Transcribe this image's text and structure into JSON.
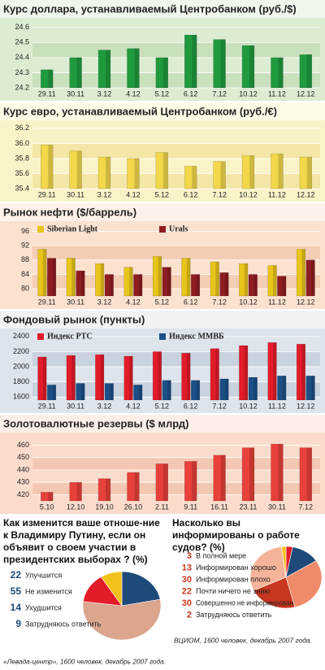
{
  "chart_data": [
    {
      "type": "bar",
      "title": "Курс доллара, устанавливаемый Центробанком (руб./$)",
      "categories": [
        "29.11",
        "30.11",
        "3.12",
        "4.12",
        "5.12",
        "6.12",
        "7.12",
        "10.12",
        "11.12",
        "12.12"
      ],
      "values": [
        24.32,
        24.4,
        24.45,
        24.46,
        24.4,
        24.55,
        24.52,
        24.48,
        24.4,
        24.42
      ],
      "color": "#1f9a3e",
      "ylim": [
        24.2,
        24.62
      ],
      "yticks": [
        24.2,
        24.3,
        24.4,
        24.5,
        24.6
      ],
      "grid": true
    },
    {
      "type": "bar",
      "title": "Курс евро, устанавливаемый Центробанком (руб./€)",
      "categories": [
        "29.11",
        "30.11",
        "3.12",
        "4.12",
        "5.12",
        "6.12",
        "7.12",
        "10.12",
        "11.12",
        "12.12"
      ],
      "values": [
        35.98,
        35.9,
        35.82,
        35.8,
        35.88,
        35.7,
        35.76,
        35.84,
        35.86,
        35.82
      ],
      "color": "#f2d84a",
      "ylim": [
        35.4,
        36.22
      ],
      "yticks": [
        35.4,
        35.6,
        35.8,
        {
          "value": 36,
          "label": "36.0"
        },
        36.2
      ],
      "grid": true
    },
    {
      "type": "bar",
      "title": "Рынок нефти ($/баррель)",
      "categories": [
        "29.11",
        "30.11",
        "3.12",
        "4.12",
        "5.12",
        "6.12",
        "7.12",
        "10.12",
        "11.12",
        "12.12"
      ],
      "series": [
        {
          "name": "Siberian Light",
          "color": "#e8c51a",
          "values": [
            91,
            88.5,
            87,
            86,
            89,
            88.5,
            87.5,
            87,
            86.5,
            91
          ]
        },
        {
          "name": "Urals",
          "color": "#8e1d22",
          "values": [
            88.5,
            85,
            84,
            84,
            86,
            84,
            84.5,
            84,
            83.5,
            88
          ]
        }
      ],
      "ylim": [
        78,
        97
      ],
      "yticks": [
        80,
        84,
        88,
        92,
        96
      ],
      "grid": true
    },
    {
      "type": "bar",
      "title": "Фондовый рынок (пункты)",
      "categories": [
        "29.11",
        "30.11",
        "3.12",
        "4.12",
        "5.12",
        "6.12",
        "7.12",
        "10.12",
        "11.12",
        "12.12"
      ],
      "series": [
        {
          "name": "Индекс РТС",
          "color": "#e31c2a",
          "values": [
            2130,
            2150,
            2160,
            2140,
            2200,
            2180,
            2240,
            2280,
            2320,
            2300
          ]
        },
        {
          "name": "Индекс ММВБ",
          "color": "#1c4f86",
          "values": [
            1760,
            1780,
            1780,
            1760,
            1820,
            1820,
            1840,
            1860,
            1880,
            1880
          ]
        }
      ],
      "ylim": [
        1560,
        2420
      ],
      "yticks": [
        1600,
        1800,
        2000,
        2200,
        2400
      ],
      "grid": true
    },
    {
      "type": "bar",
      "title": "Золотовалютные резервы ($ млрд)",
      "categories": [
        "5.10",
        "12.10",
        "19.10",
        "26.10",
        "2.11",
        "9.11",
        "16.11",
        "23.11",
        "30.11",
        "7.12"
      ],
      "values": [
        422,
        430,
        433,
        438,
        445,
        447,
        452,
        458,
        461,
        458
      ],
      "color": "#e8403a",
      "ylim": [
        415,
        465
      ],
      "yticks": [
        420,
        430,
        440,
        450,
        460
      ],
      "grid": true
    },
    {
      "type": "pie",
      "title": "Как изменится ваше отноше-ние к Владимиру Путину, если он объявит о своем участии в президентских выборах ? (%)",
      "categories": [
        "Улучшится",
        "Не изменится",
        "Ухудшится",
        "Затрудняюсь ответить"
      ],
      "values": [
        22,
        55,
        14,
        9
      ],
      "colors": [
        "#1d4a78",
        "#dba58e",
        "#e31c2a",
        "#f2c21b"
      ],
      "source": "«Левада-центр», 1600 человек, декабрь 2007 года."
    },
    {
      "type": "pie",
      "title": "Насколько вы информированы о работе судов? (%)",
      "categories": [
        "В полной мере",
        "Информирован хорошо",
        "Информирован плохо",
        "Почти ничего не знаю",
        "Совершенно не информирован",
        "Затрудняюсь ответить"
      ],
      "values": [
        3,
        13,
        30,
        22,
        30,
        2
      ],
      "colors": [
        "#e31c2a",
        "#1d4a78",
        "#f08a6a",
        "#c7361f",
        "#f5b49a",
        "#f2c21b"
      ],
      "source": "ВЦИОМ, 1600 человек, декабрь 2007 года."
    }
  ]
}
